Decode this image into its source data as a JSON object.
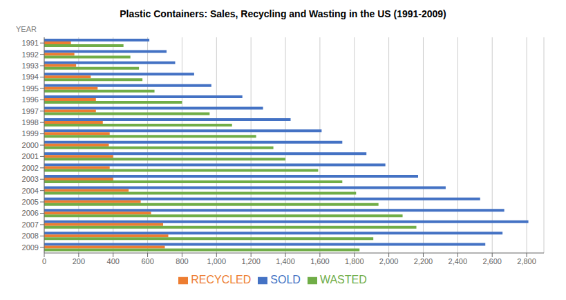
{
  "chart_data": {
    "type": "bar",
    "orientation": "horizontal",
    "title": "Plastic Containers: Sales, Recycling and Wasting in the US (1991-2009)",
    "y_label": "YEAR",
    "categories": [
      "1991",
      "1992",
      "1993",
      "1994",
      "1995",
      "1996",
      "1997",
      "1998",
      "1999",
      "2000",
      "2001",
      "2002",
      "2003",
      "2004",
      "2005",
      "2006",
      "2007",
      "2008",
      "2009"
    ],
    "series": [
      {
        "name": "SOLD",
        "color": "#4472C4",
        "values": [
          610,
          710,
          760,
          870,
          970,
          1150,
          1270,
          1430,
          1610,
          1730,
          1870,
          1980,
          2170,
          2330,
          2530,
          2670,
          2810,
          2660,
          2560
        ]
      },
      {
        "name": "RECYCLED",
        "color": "#ED7D31",
        "values": [
          155,
          175,
          185,
          270,
          310,
          300,
          300,
          340,
          380,
          375,
          400,
          380,
          400,
          490,
          560,
          620,
          690,
          720,
          700
        ]
      },
      {
        "name": "WASTED",
        "color": "#70AD47",
        "values": [
          460,
          500,
          550,
          570,
          640,
          800,
          960,
          1090,
          1230,
          1330,
          1400,
          1590,
          1730,
          1810,
          1940,
          2080,
          2160,
          1910,
          1830
        ]
      }
    ],
    "xlim": [
      0,
      2900
    ],
    "xticks": [
      0,
      200,
      400,
      600,
      800,
      {
        "value": 1000,
        "label": "1,000"
      },
      {
        "value": 1200,
        "label": "1,200"
      },
      {
        "value": 1400,
        "label": "1,400"
      },
      {
        "value": 1600,
        "label": "1,600"
      },
      {
        "value": 1800,
        "label": "1,800"
      },
      {
        "value": 2000,
        "label": "2,000"
      },
      {
        "value": 2200,
        "label": "2,200"
      },
      {
        "value": 2400,
        "label": "2,400"
      },
      {
        "value": 2600,
        "label": "2,600"
      },
      {
        "value": 2800,
        "label": "2,800"
      }
    ],
    "grid": true,
    "legend": "bottom"
  }
}
